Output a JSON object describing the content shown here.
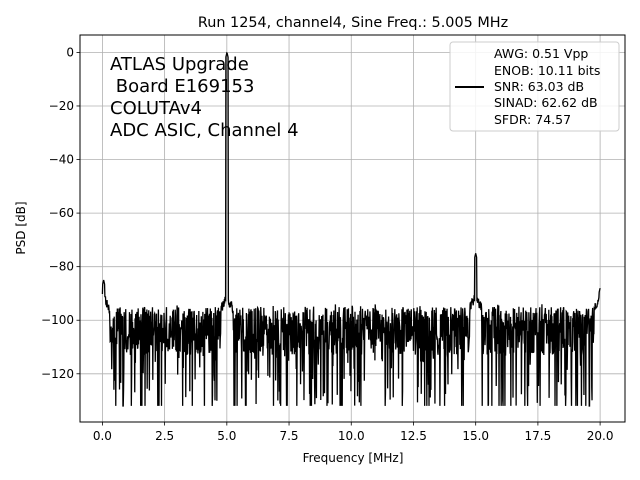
{
  "chart_data": {
    "type": "line",
    "title": "Run 1254, channel4, Sine Freq.: 5.005 MHz",
    "xlabel": "Frequency [MHz]",
    "ylabel": "PSD [dB]",
    "xlim": [
      -0.9,
      21.0
    ],
    "ylim": [
      -138,
      6.5
    ],
    "xticks": [
      0.0,
      2.5,
      5.0,
      7.5,
      10.0,
      12.5,
      15.0,
      17.5,
      20.0
    ],
    "xtick_labels": [
      "0.0",
      "2.5",
      "5.0",
      "7.5",
      "10.0",
      "12.5",
      "15.0",
      "17.5",
      "20.0"
    ],
    "yticks": [
      0,
      -20,
      -40,
      -60,
      -80,
      -100,
      -120
    ],
    "ytick_labels": [
      "0",
      "−20",
      "−40",
      "−60",
      "−80",
      "−100",
      "−120"
    ],
    "grid": true,
    "legend_position": "top-right",
    "series": [
      {
        "name": "AWG: 0.51 Vpp\nENOB: 10.11 bits\nSNR: 63.03 dB\nSINAD: 62.62 dB\nSFDR: 74.57",
        "color": "#000000",
        "noise_floor_db": -104,
        "noise_low_db": -132,
        "noise_high_db": -85,
        "peaks": [
          {
            "x": 5.005,
            "y": 0
          },
          {
            "x": 15.0,
            "y": -75
          },
          {
            "x": 0.05,
            "y": -85
          },
          {
            "x": 20.0,
            "y": -88
          }
        ]
      }
    ],
    "annotation": [
      "ATLAS Upgrade",
      " Board E169153",
      "COLUTAv4",
      "ADC ASIC, Channel 4"
    ],
    "legend_lines": [
      "AWG: 0.51 Vpp",
      "ENOB: 10.11 bits",
      "SNR: 63.03 dB",
      "SINAD: 62.62 dB",
      "SFDR: 74.57"
    ]
  }
}
